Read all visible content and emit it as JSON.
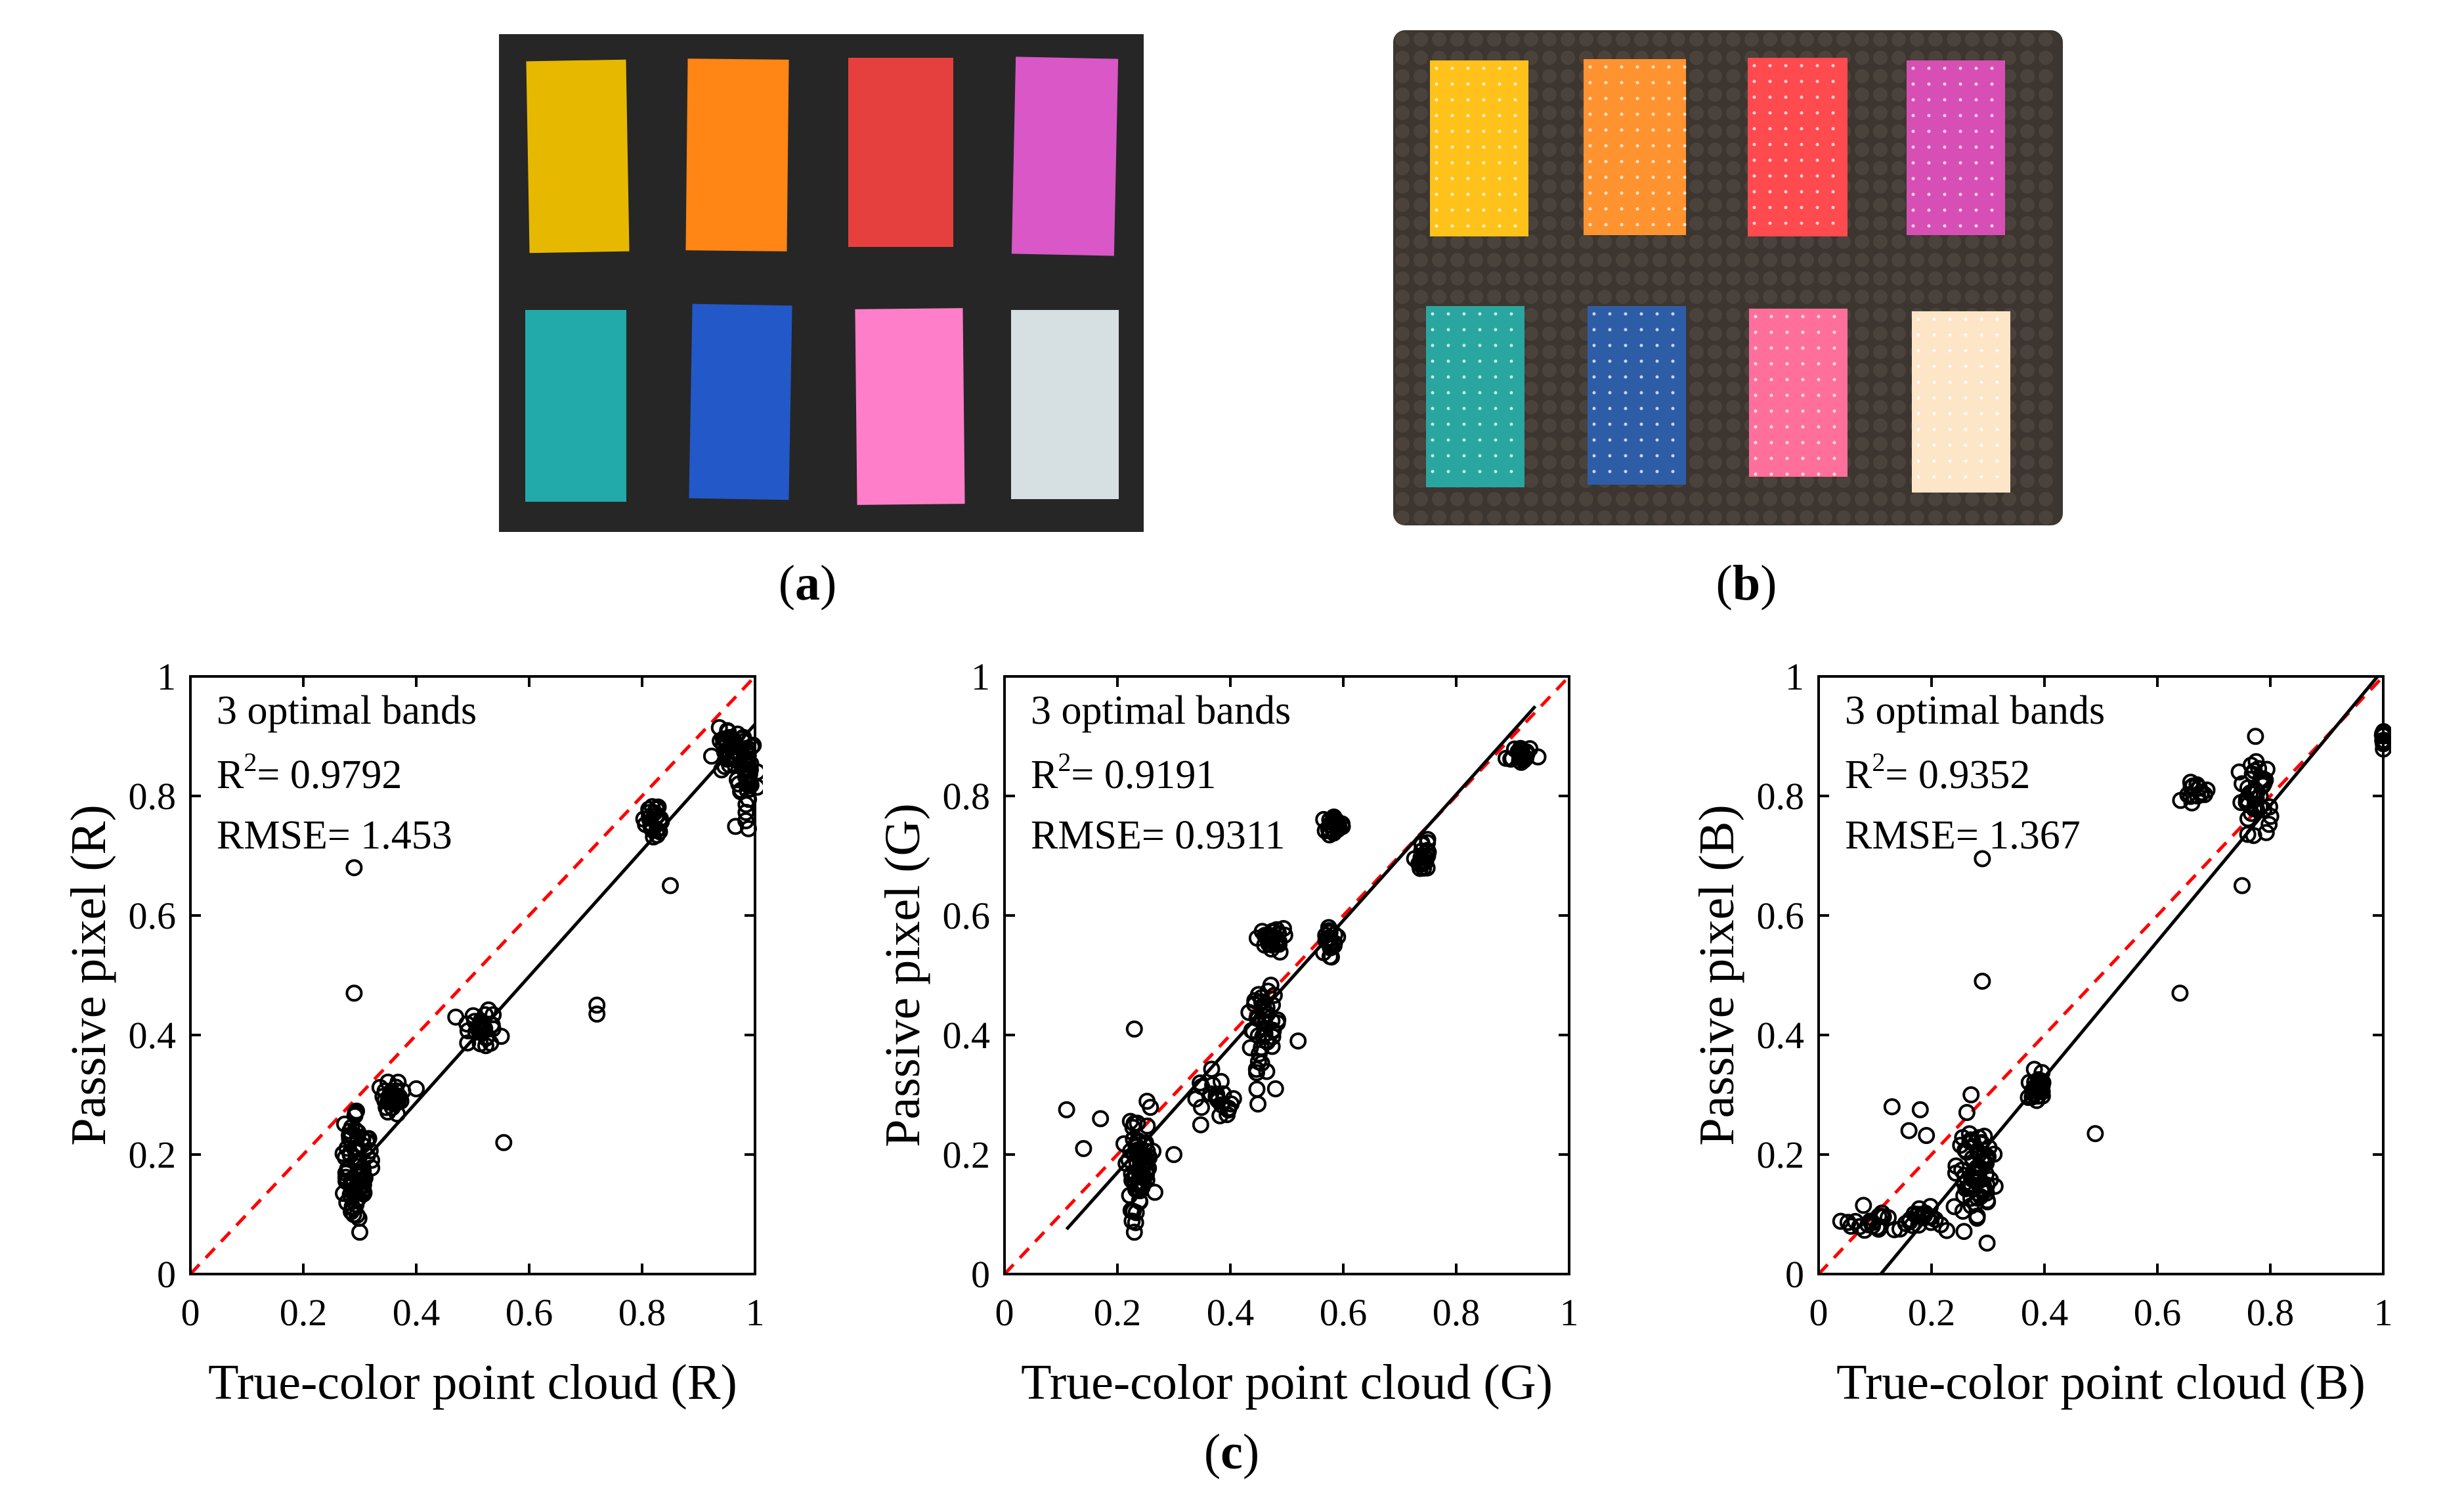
{
  "figure": {
    "caption_a": {
      "open": "(",
      "letter": "a",
      "close": ")"
    },
    "caption_b": {
      "open": "(",
      "letter": "b",
      "close": ")"
    },
    "caption_c": {
      "open": "(",
      "letter": "c",
      "close": ")"
    }
  },
  "panel_a": {
    "background": "#262626",
    "swatches": [
      {
        "name": "yellow",
        "color": "#e7b800"
      },
      {
        "name": "orange",
        "color": "#ff8514"
      },
      {
        "name": "red",
        "color": "#e6403e"
      },
      {
        "name": "magenta",
        "color": "#d957c7"
      },
      {
        "name": "teal",
        "color": "#21aaa9"
      },
      {
        "name": "blue",
        "color": "#2358c9"
      },
      {
        "name": "pink",
        "color": "#ff7ec9"
      },
      {
        "name": "white",
        "color": "#d6dfe2"
      }
    ]
  },
  "panel_b": {
    "background": "#3d3630",
    "swatches": [
      {
        "name": "yellow",
        "color": "#ffc21a"
      },
      {
        "name": "orange",
        "color": "#ff9330"
      },
      {
        "name": "red",
        "color": "#ff4a4f"
      },
      {
        "name": "magenta",
        "color": "#d74fb4"
      },
      {
        "name": "teal",
        "color": "#2aa6a0"
      },
      {
        "name": "blue",
        "color": "#2e5da8"
      },
      {
        "name": "pink",
        "color": "#ff6f9c"
      },
      {
        "name": "cream",
        "color": "#fde6c8"
      }
    ]
  },
  "chart_data": [
    {
      "type": "scatter",
      "channel": "R",
      "xlabel": "True-color point cloud (R)",
      "ylabel": "Passive pixel (R)",
      "xlim": [
        0,
        1
      ],
      "ylim": [
        0,
        1
      ],
      "xticks": [
        "0",
        "0.2",
        "0.4",
        "0.6",
        "0.8",
        "1"
      ],
      "yticks": [
        "0",
        "0.2",
        "0.4",
        "0.6",
        "0.8",
        "1"
      ],
      "annotation": {
        "bands": "3 optimal  bands",
        "r2_label": "R",
        "r2_sup": "2",
        "r2_value": "= 0.9792",
        "rmse": "RMSE= 1.453"
      },
      "fit_line": {
        "x": [
          0.27,
          1.0
        ],
        "y": [
          0.15,
          0.92
        ]
      },
      "identity_line": {
        "x": [
          0,
          1
        ],
        "y": [
          0,
          1
        ]
      },
      "clusters": [
        {
          "x": 0.29,
          "y": 0.18,
          "sx": 0.012,
          "sy": 0.045,
          "n": 80
        },
        {
          "x": 0.36,
          "y": 0.295,
          "sx": 0.012,
          "sy": 0.012,
          "n": 30
        },
        {
          "x": 0.52,
          "y": 0.41,
          "sx": 0.012,
          "sy": 0.015,
          "n": 30
        },
        {
          "x": 0.82,
          "y": 0.755,
          "sx": 0.008,
          "sy": 0.018,
          "n": 25
        },
        {
          "x": 0.95,
          "y": 0.88,
          "sx": 0.012,
          "sy": 0.02,
          "n": 30
        },
        {
          "x": 0.985,
          "y": 0.83,
          "sx": 0.008,
          "sy": 0.04,
          "n": 40
        }
      ],
      "points": [
        [
          0.29,
          0.68
        ],
        [
          0.29,
          0.47
        ],
        [
          0.72,
          0.45
        ],
        [
          0.72,
          0.435
        ],
        [
          0.555,
          0.22
        ],
        [
          0.85,
          0.65
        ],
        [
          0.3,
          0.07
        ],
        [
          0.4,
          0.31
        ],
        [
          0.47,
          0.43
        ]
      ]
    },
    {
      "type": "scatter",
      "channel": "G",
      "xlabel": "True-color point cloud (G)",
      "ylabel": "Passive pixel (G)",
      "xlim": [
        0,
        1
      ],
      "ylim": [
        0,
        1
      ],
      "xticks": [
        "0",
        "0.2",
        "0.4",
        "0.6",
        "0.8",
        "1"
      ],
      "yticks": [
        "0",
        "0.2",
        "0.4",
        "0.6",
        "0.8",
        "1"
      ],
      "annotation": {
        "bands": "3 optimal  bands",
        "r2_label": "R",
        "r2_sup": "2",
        "r2_value": "= 0.9191",
        "rmse": "RMSE= 0.9311"
      },
      "fit_line": {
        "x": [
          0.11,
          0.94
        ],
        "y": [
          0.075,
          0.95
        ]
      },
      "identity_line": {
        "x": [
          0,
          1
        ],
        "y": [
          0,
          1
        ]
      },
      "clusters": [
        {
          "x": 0.24,
          "y": 0.18,
          "sx": 0.012,
          "sy": 0.04,
          "n": 70
        },
        {
          "x": 0.38,
          "y": 0.3,
          "sx": 0.015,
          "sy": 0.02,
          "n": 25
        },
        {
          "x": 0.46,
          "y": 0.41,
          "sx": 0.012,
          "sy": 0.04,
          "n": 45
        },
        {
          "x": 0.47,
          "y": 0.56,
          "sx": 0.015,
          "sy": 0.01,
          "n": 25
        },
        {
          "x": 0.575,
          "y": 0.56,
          "sx": 0.006,
          "sy": 0.015,
          "n": 20
        },
        {
          "x": 0.585,
          "y": 0.75,
          "sx": 0.008,
          "sy": 0.008,
          "n": 25
        },
        {
          "x": 0.745,
          "y": 0.7,
          "sx": 0.006,
          "sy": 0.015,
          "n": 20
        },
        {
          "x": 0.915,
          "y": 0.87,
          "sx": 0.012,
          "sy": 0.008,
          "n": 20
        }
      ],
      "points": [
        [
          0.11,
          0.275
        ],
        [
          0.14,
          0.21
        ],
        [
          0.17,
          0.26
        ],
        [
          0.23,
          0.41
        ],
        [
          0.23,
          0.07
        ],
        [
          0.3,
          0.2
        ],
        [
          0.48,
          0.31
        ],
        [
          0.52,
          0.39
        ]
      ]
    },
    {
      "type": "scatter",
      "channel": "B",
      "xlabel": "True-color point cloud (B)",
      "ylabel": "Passive pixel (B)",
      "xlim": [
        0,
        1
      ],
      "ylim": [
        0,
        1
      ],
      "xticks": [
        "0",
        "0.2",
        "0.4",
        "0.6",
        "0.8",
        "1"
      ],
      "yticks": [
        "0",
        "0.2",
        "0.4",
        "0.6",
        "0.8",
        "1"
      ],
      "annotation": {
        "bands": "3 optimal  bands",
        "r2_label": "R",
        "r2_sup": "2",
        "r2_value": "= 0.9352",
        "rmse": "RMSE= 1.367"
      },
      "fit_line": {
        "x": [
          0.11,
          0.99
        ],
        "y": [
          0.0,
          1.0
        ]
      },
      "identity_line": {
        "x": [
          0,
          1
        ],
        "y": [
          0,
          1
        ]
      },
      "clusters": [
        {
          "x": 0.09,
          "y": 0.085,
          "sx": 0.025,
          "sy": 0.01,
          "n": 20
        },
        {
          "x": 0.19,
          "y": 0.09,
          "sx": 0.02,
          "sy": 0.01,
          "n": 20
        },
        {
          "x": 0.28,
          "y": 0.18,
          "sx": 0.02,
          "sy": 0.045,
          "n": 70
        },
        {
          "x": 0.39,
          "y": 0.31,
          "sx": 0.012,
          "sy": 0.015,
          "n": 25
        },
        {
          "x": 0.665,
          "y": 0.805,
          "sx": 0.01,
          "sy": 0.008,
          "n": 15
        },
        {
          "x": 0.77,
          "y": 0.79,
          "sx": 0.015,
          "sy": 0.03,
          "n": 40
        },
        {
          "x": 1.0,
          "y": 0.895,
          "sx": 0.001,
          "sy": 0.01,
          "n": 12
        }
      ],
      "points": [
        [
          0.29,
          0.695
        ],
        [
          0.29,
          0.49
        ],
        [
          0.64,
          0.47
        ],
        [
          0.75,
          0.65
        ],
        [
          0.49,
          0.235
        ],
        [
          0.13,
          0.28
        ],
        [
          0.18,
          0.275
        ],
        [
          0.16,
          0.24
        ],
        [
          0.27,
          0.3
        ]
      ]
    }
  ]
}
